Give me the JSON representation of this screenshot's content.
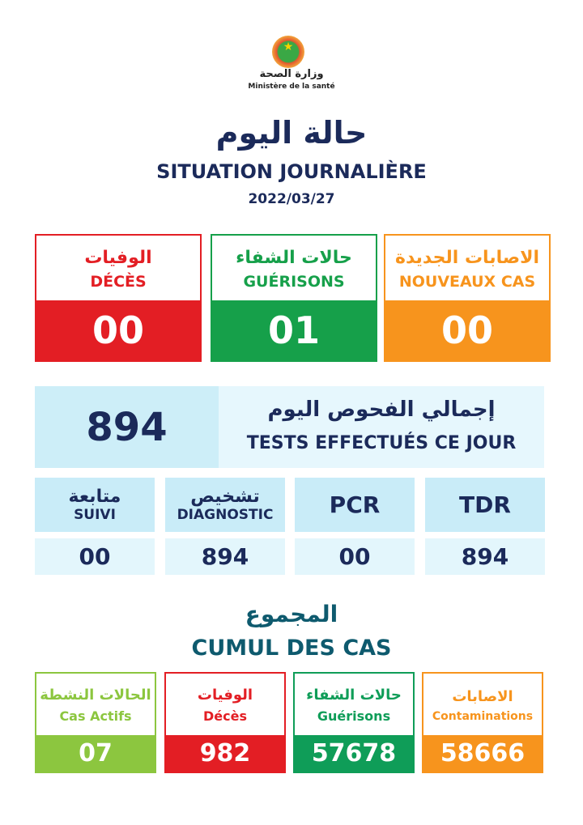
{
  "header": {
    "ministry_ar": "وزارة الصحة",
    "ministry_fr": "Ministère de la santé",
    "title_ar": "حالة اليوم",
    "title_fr": "SITUATION JOURNALIÈRE",
    "date": "2022/03/27"
  },
  "daily": [
    {
      "ar": "الوفيات",
      "fr": "DÉCÈS",
      "value": "00",
      "color": "#e31e24"
    },
    {
      "ar": "حالات الشفاء",
      "fr": "GUÉRISONS",
      "value": "01",
      "color": "#16a04a"
    },
    {
      "ar": "الاصابات الجديدة",
      "fr": "NOUVEAUX CAS",
      "value": "00",
      "color": "#f7941d"
    }
  ],
  "tests": {
    "value": "894",
    "ar": "إجمالي الفحوص اليوم",
    "fr": "TESTS EFFECTUÉS CE JOUR",
    "breakdown": [
      {
        "ar": "متابعة",
        "fr": "SUIVI",
        "value": "00"
      },
      {
        "ar": "تشخيص",
        "fr": "DIAGNOSTIC",
        "value": "894"
      },
      {
        "fr": "PCR",
        "value": "00"
      },
      {
        "fr": "TDR",
        "value": "894"
      }
    ]
  },
  "cumul": {
    "title_ar": "المجموع",
    "title_fr": "CUMUL DES CAS",
    "items": [
      {
        "ar": "الحالات النشطة",
        "fr": "Cas Actifs",
        "value": "07",
        "color": "#8cc63f"
      },
      {
        "ar": "الوفيات",
        "fr": "Décès",
        "value": "982",
        "color": "#e31e24"
      },
      {
        "ar": "حالات الشفاء",
        "fr": "Guérisons",
        "value": "57678",
        "color": "#0f9d58"
      },
      {
        "ar": "الاصابات",
        "fr": "Contaminations",
        "value": "58666",
        "color": "#f7941d"
      }
    ]
  }
}
